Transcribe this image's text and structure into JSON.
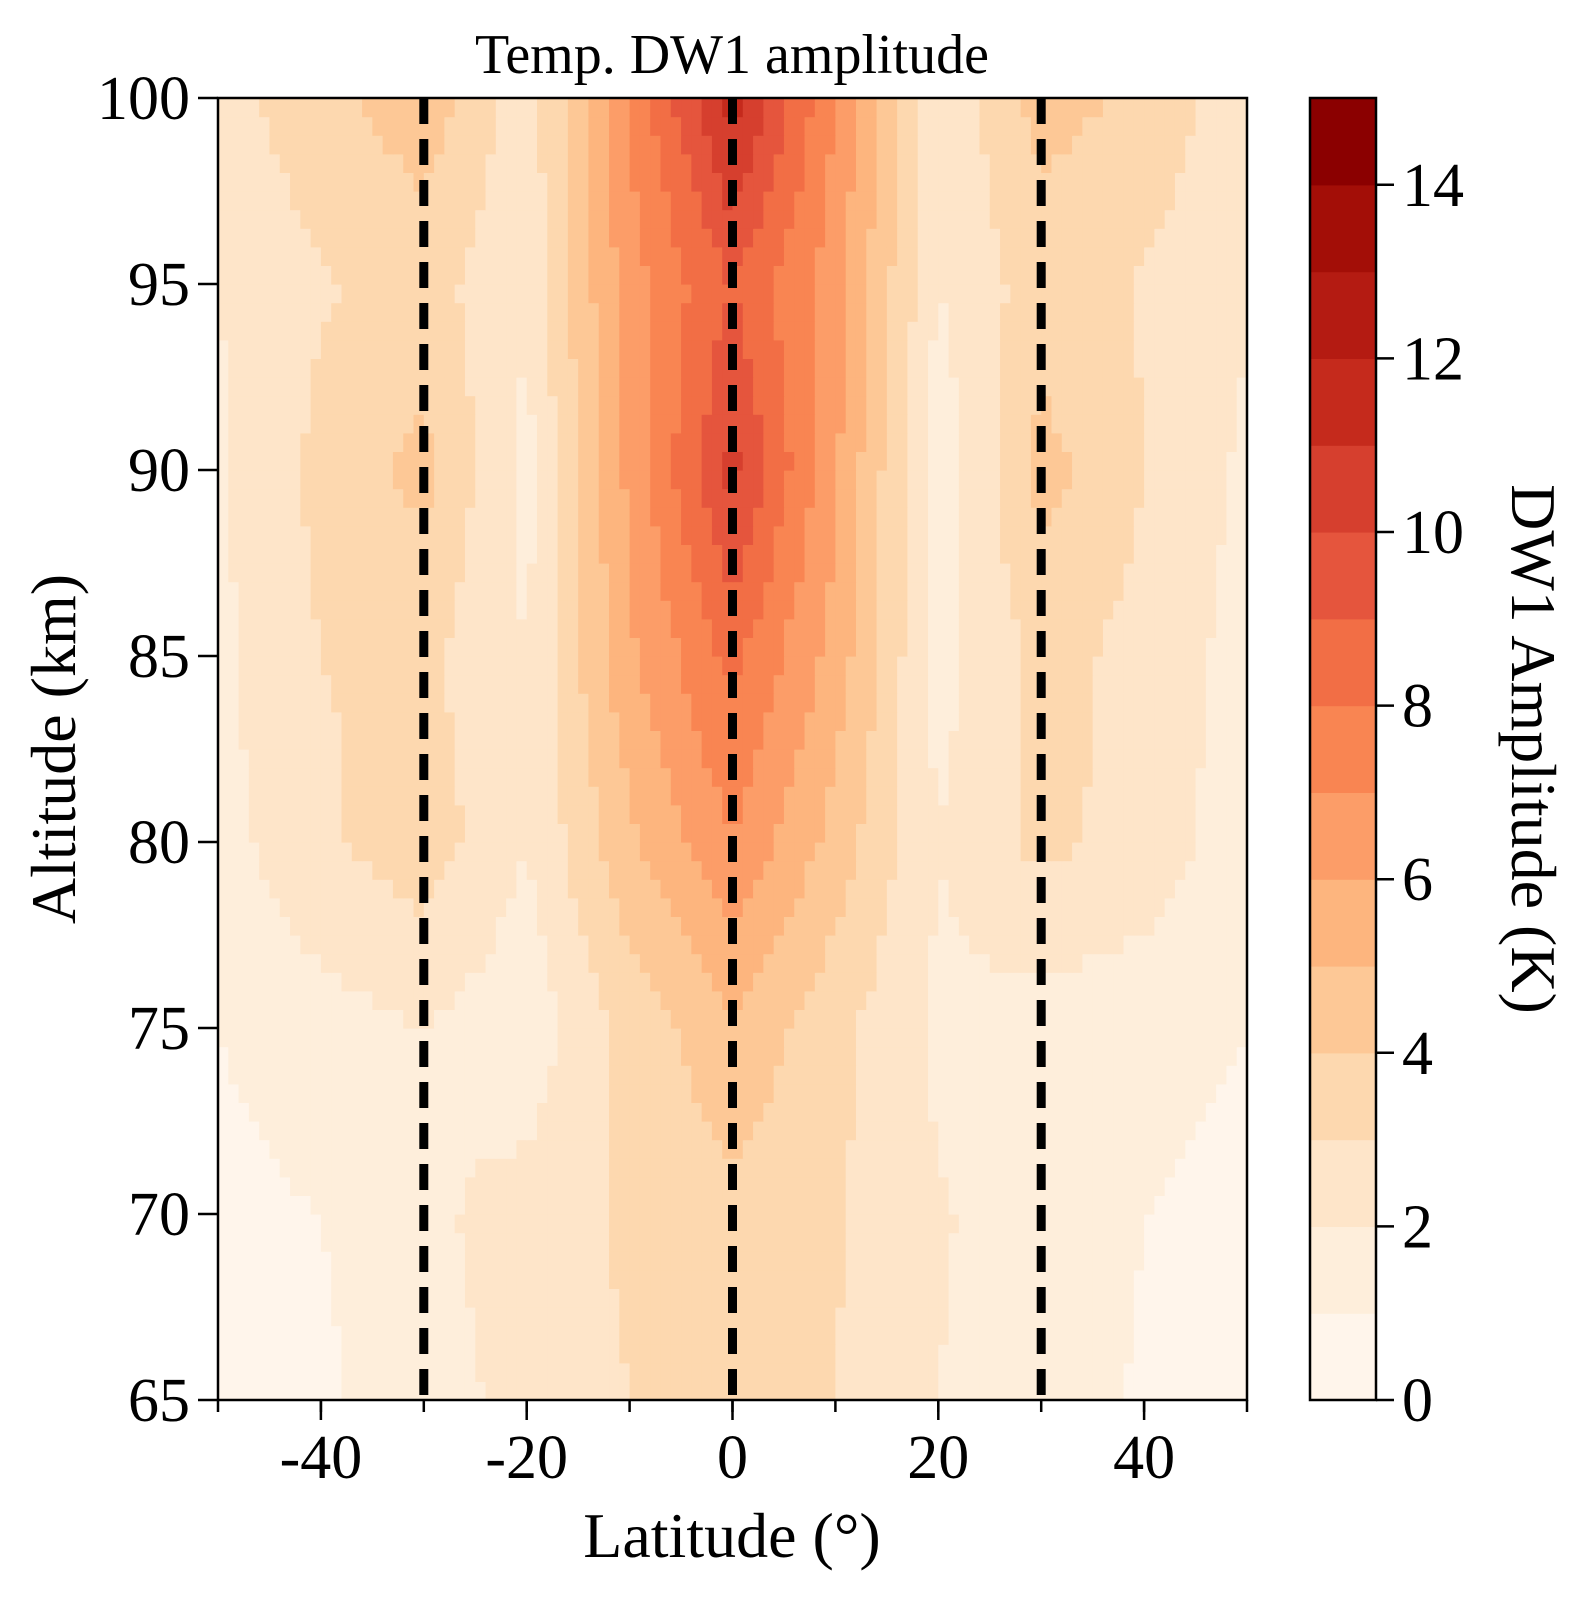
{
  "chart_data": {
    "type": "heatmap",
    "title": "Temp. DW1 amplitude",
    "xlabel": "Latitude (°)",
    "ylabel": "Altitude (km)",
    "xlim": [
      -50,
      50
    ],
    "ylim": [
      65,
      100
    ],
    "xticks": [
      -40,
      -20,
      0,
      20,
      40
    ],
    "xtick_labels": [
      "-40",
      "-20",
      "0",
      "20",
      "40"
    ],
    "yticks": [
      65,
      70,
      75,
      80,
      85,
      90,
      95,
      100
    ],
    "ytick_labels": [
      "65",
      "70",
      "75",
      "80",
      "85",
      "90",
      "95",
      "100"
    ],
    "reference_lines": {
      "latitudes": [
        -30,
        0,
        30
      ],
      "style": "dashed",
      "color": "#000000"
    },
    "colorbar": {
      "label": "DW1 Amplitude (K)",
      "range": [
        0,
        15
      ],
      "levels": [
        0,
        1,
        2,
        3,
        4,
        5,
        6,
        7,
        8,
        9,
        10,
        11,
        12,
        13,
        14,
        15
      ],
      "ticks": [
        0,
        2,
        4,
        6,
        8,
        10,
        12,
        14
      ],
      "tick_labels": [
        "0",
        "2",
        "4",
        "6",
        "8",
        "10",
        "12",
        "14"
      ],
      "colors": [
        "#fff5eb",
        "#feeedb",
        "#fee5c9",
        "#fdd8af",
        "#fdc896",
        "#fdb57e",
        "#fc9d68",
        "#f98552",
        "#f26e45",
        "#e5553d",
        "#d63f2e",
        "#c52a1c",
        "#b41b12",
        "#a30e07",
        "#8b0000"
      ]
    },
    "grid_latitudes": [
      -50,
      -40,
      -30,
      -20,
      -10,
      0,
      10,
      20,
      30,
      40,
      50
    ],
    "grid_altitudes": [
      65,
      70,
      75,
      80,
      85,
      90,
      95,
      100
    ],
    "amplitude_K": [
      [
        0.6,
        0.8,
        1.6,
        2.3,
        3.0,
        3.4,
        3.0,
        2.0,
        1.4,
        0.9,
        0.6
      ],
      [
        0.7,
        1.0,
        1.8,
        2.4,
        3.2,
        3.7,
        3.1,
        2.1,
        1.5,
        1.0,
        0.7
      ],
      [
        1.0,
        1.6,
        2.0,
        1.3,
        3.4,
        4.8,
        3.3,
        1.8,
        1.5,
        1.4,
        1.0
      ],
      [
        1.6,
        2.8,
        3.6,
        2.0,
        4.8,
        7.0,
        4.6,
        2.0,
        3.3,
        2.6,
        1.4
      ],
      [
        1.8,
        3.0,
        3.2,
        2.0,
        5.8,
        8.3,
        5.6,
        1.6,
        3.3,
        2.7,
        1.6
      ],
      [
        1.8,
        3.3,
        4.3,
        1.6,
        6.3,
        10.3,
        6.2,
        1.3,
        4.4,
        3.0,
        1.8
      ],
      [
        2.0,
        2.9,
        3.4,
        2.2,
        6.6,
        9.0,
        6.4,
        2.0,
        3.5,
        2.9,
        2.1
      ],
      [
        2.6,
        3.7,
        4.6,
        2.4,
        7.0,
        11.6,
        7.0,
        2.1,
        4.4,
        3.8,
        2.3
      ]
    ]
  }
}
